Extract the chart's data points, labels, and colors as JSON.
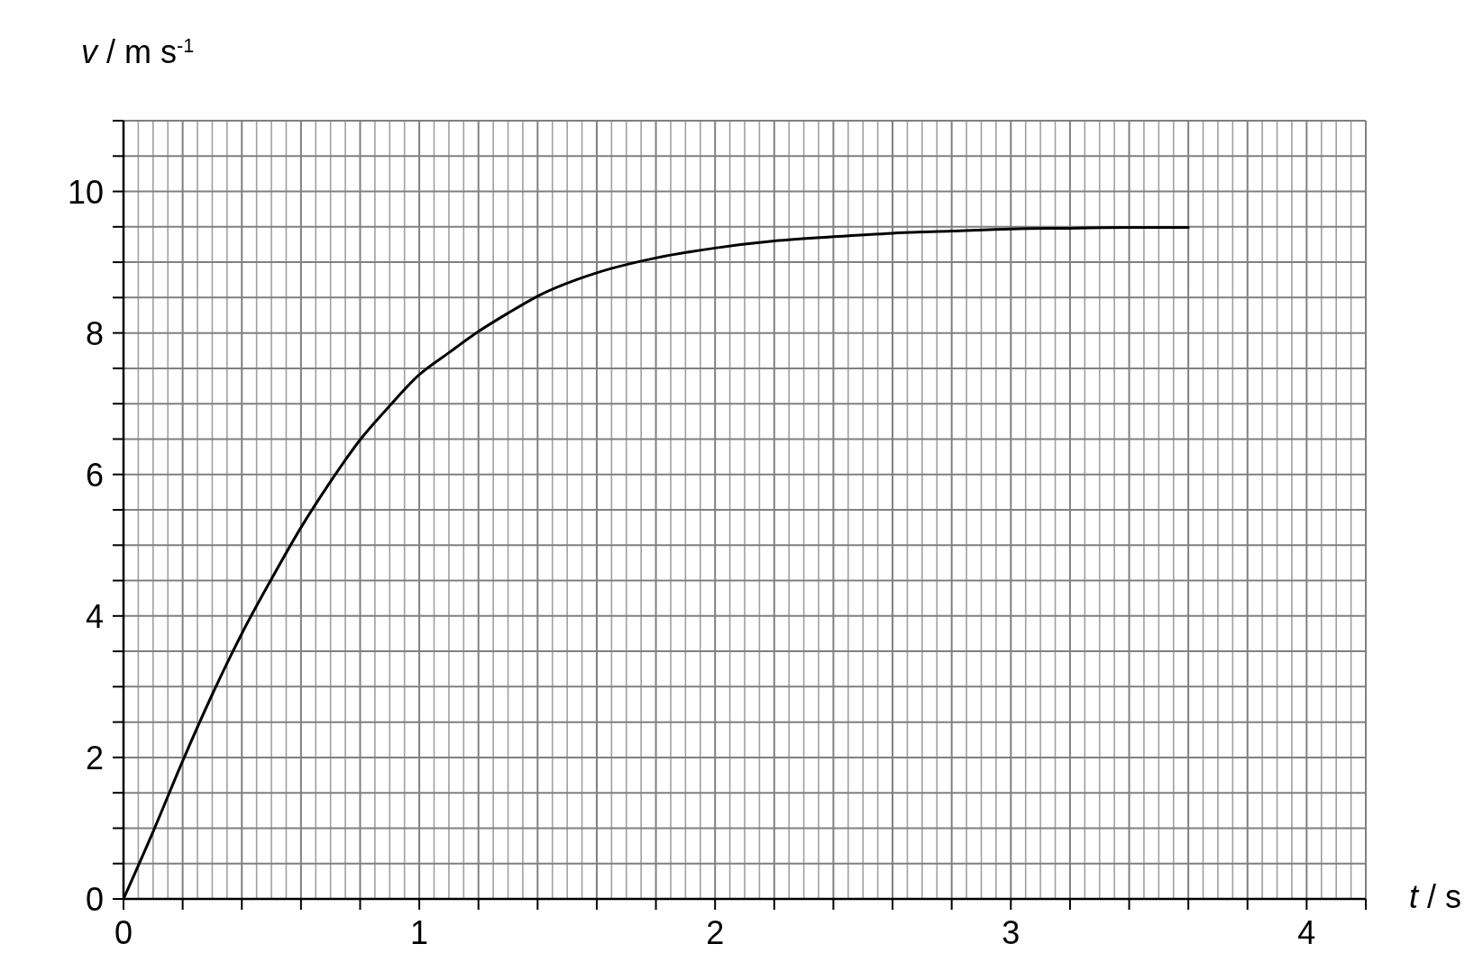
{
  "chart_data": {
    "type": "line",
    "xlabel": "t / s",
    "ylabel": "v / m s$^{-1}$",
    "x": [
      0,
      0.1,
      0.2,
      0.3,
      0.4,
      0.5,
      0.6,
      0.7,
      0.8,
      0.9,
      1.0,
      1.1,
      1.2,
      1.3,
      1.4,
      1.6,
      1.8,
      2.0,
      2.2,
      2.4,
      2.6,
      2.8,
      3.0,
      3.2,
      3.4,
      3.6
    ],
    "series": [
      {
        "color": "#000000",
        "values": [
          0,
          0.95,
          1.95,
          2.89,
          3.75,
          4.52,
          5.25,
          5.9,
          6.49,
          6.97,
          7.41,
          7.72,
          8.02,
          8.28,
          8.52,
          8.85,
          9.06,
          9.2,
          9.3,
          9.36,
          9.41,
          9.44,
          9.47,
          9.48,
          9.49,
          9.49
        ]
      }
    ],
    "xlim": [
      0,
      4.2
    ],
    "ylim": [
      0,
      11
    ],
    "xticks": [
      0,
      {
        "value": 0.2,
        "label": null
      },
      {
        "value": 0.4,
        "label": null
      },
      {
        "value": 0.6,
        "label": null
      },
      {
        "value": 0.8,
        "label": null
      },
      1,
      {
        "value": 1.2,
        "label": null
      },
      {
        "value": 1.4,
        "label": null
      },
      {
        "value": 1.6,
        "label": null
      },
      {
        "value": 1.8,
        "label": null
      },
      2,
      {
        "value": 2.2,
        "label": null
      },
      {
        "value": 2.4,
        "label": null
      },
      {
        "value": 2.6,
        "label": null
      },
      {
        "value": 2.8,
        "label": null
      },
      3,
      {
        "value": 3.2,
        "label": null
      },
      {
        "value": 3.4,
        "label": null
      },
      {
        "value": 3.6,
        "label": null
      },
      {
        "value": 3.8,
        "label": null
      },
      4,
      {
        "value": 4.2,
        "label": null
      }
    ],
    "yticks": [
      0,
      {
        "value": 0.5,
        "label": null
      },
      {
        "value": 1,
        "label": null
      },
      {
        "value": 1.5,
        "label": null
      },
      2,
      {
        "value": 2.5,
        "label": null
      },
      {
        "value": 3,
        "label": null
      },
      {
        "value": 3.5,
        "label": null
      },
      4,
      {
        "value": 4.5,
        "label": null
      },
      {
        "value": 5,
        "label": null
      },
      {
        "value": 5.5,
        "label": null
      },
      6,
      {
        "value": 6.5,
        "label": null
      },
      {
        "value": 7,
        "label": null
      },
      {
        "value": 7.5,
        "label": null
      },
      8,
      {
        "value": 8.5,
        "label": null
      },
      {
        "value": 9,
        "label": null
      },
      {
        "value": 9.5,
        "label": null
      },
      10,
      {
        "value": 10.5,
        "label": null
      },
      {
        "value": 11,
        "label": null
      }
    ],
    "grid": true,
    "line_style": "solid",
    "marker": "none"
  }
}
